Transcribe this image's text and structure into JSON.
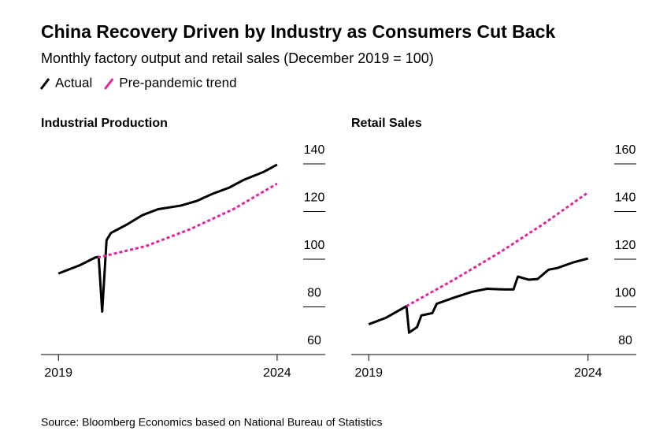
{
  "title": "China Recovery Driven by Industry as Consumers Cut Back",
  "subtitle": "Monthly factory output and retail sales (December 2019 = 100)",
  "source": "Source: Bloomberg Economics based on National Bureau of Statistics",
  "chart_data": [
    {
      "type": "line",
      "title": "Industrial Production",
      "xlim": [
        2018.6,
        2025.1
      ],
      "xticks": [
        2019,
        2024
      ],
      "ylim": [
        60,
        140
      ],
      "yticks": [
        60,
        80,
        100,
        120,
        140
      ],
      "series": [
        {
          "name": "Actual",
          "color": "#000000",
          "dashed": false,
          "x": [
            2019.0,
            2019.48,
            2019.84,
            2019.92,
            2020.0,
            2020.1,
            2020.2,
            2020.56,
            2020.92,
            2021.28,
            2021.8,
            2022.17,
            2022.53,
            2022.9,
            2023.25,
            2023.7,
            2024.0
          ],
          "values": [
            94,
            97.4,
            100.7,
            101,
            78,
            108,
            111,
            114.5,
            118.5,
            121,
            122.5,
            124.5,
            127.5,
            130,
            133.4,
            136.7,
            139.7
          ]
        },
        {
          "name": "Pre-pandemic trend",
          "color": "#e6239b",
          "dashed": true,
          "x": [
            2019.9,
            2021,
            2022,
            2023,
            2024
          ],
          "values": [
            100.7,
            105.5,
            112.5,
            121,
            131.7
          ]
        }
      ]
    },
    {
      "type": "line",
      "title": "Retail Sales",
      "xlim": [
        2018.6,
        2025.1
      ],
      "xticks": [
        2019,
        2024
      ],
      "ylim": [
        80,
        160
      ],
      "yticks": [
        80,
        100,
        120,
        140,
        160
      ],
      "series": [
        {
          "color": "#000000",
          "dashed": false,
          "x": [
            2019.0,
            2019.4,
            2019.86,
            2019.92,
            2020.1,
            2020.2,
            2020.45,
            2020.55,
            2020.9,
            2021.35,
            2021.7,
            2022.1,
            2022.3,
            2022.4,
            2022.65,
            2022.85,
            2023.1,
            2023.3,
            2023.65,
            2024.0
          ],
          "values": [
            92.7,
            95.5,
            100.3,
            89.2,
            91.5,
            96.4,
            97.4,
            101.3,
            103.6,
            106.3,
            107.6,
            107.3,
            107.3,
            112.7,
            111.4,
            111.7,
            115.6,
            116.3,
            118.6,
            120.3
          ]
        },
        {
          "color": "#e6239b",
          "dashed": true,
          "x": [
            2019.86,
            2021,
            2022,
            2023,
            2024
          ],
          "values": [
            100.3,
            112,
            123,
            135,
            148
          ]
        }
      ]
    }
  ]
}
